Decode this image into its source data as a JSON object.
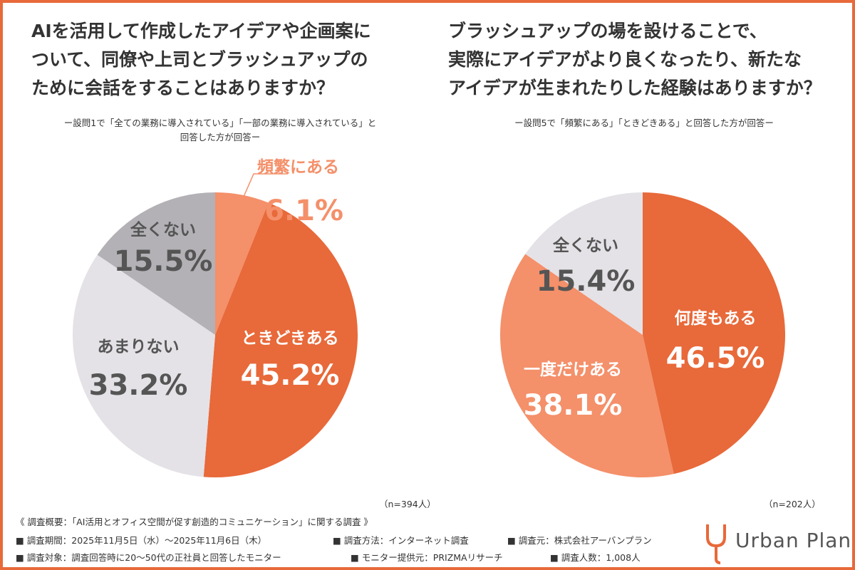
{
  "chart_data": [
    {
      "type": "pie",
      "title": [
        "AIを活用して作成したアイデアや企画案に",
        "ついて、同僚や上司とブラッシュアップの",
        "ために会話をすることはありますか？"
      ],
      "subtitle": [
        "ー設問1で「全ての業務に導入されている」「一部の業務に導入されている」と",
        "回答した方が回答ー"
      ],
      "n_label": "（n=394人）",
      "slices": [
        {
          "label": "頻繁にある",
          "value": 6.1,
          "display": "6.1%",
          "color": "#f4906a"
        },
        {
          "label": "ときどきある",
          "value": 45.2,
          "display": "45.2%",
          "color": "#e8693a"
        },
        {
          "label": "あまりない",
          "value": 33.2,
          "display": "33.2%",
          "color": "#e4e2e6"
        },
        {
          "label": "全くない",
          "value": 15.5,
          "display": "15.5%",
          "color": "#b3b1b5"
        }
      ]
    },
    {
      "type": "pie",
      "title": [
        "ブラッシュアップの場を設けることで、",
        "実際にアイデアがより良くなったり、新たな",
        "アイデアが生まれたりした経験はありますか？"
      ],
      "subtitle": [
        "ー設問5で「頻繁にある」「ときどきある」と回答した方が回答ー"
      ],
      "n_label": "（n=202人）",
      "slices": [
        {
          "label": "何度もある",
          "value": 46.5,
          "display": "46.5%",
          "color": "#e8693a"
        },
        {
          "label": "一度だけある",
          "value": 38.1,
          "display": "38.1%",
          "color": "#f4906a"
        },
        {
          "label": "全くない",
          "value": 15.4,
          "display": "15.4%",
          "color": "#e4e2e6"
        }
      ]
    }
  ],
  "footer": {
    "summary": "《 調査概要：「AI活用とオフィス空間が促す創造的コミュニケーション」に関する調査 》",
    "items_row1": [
      "■ 調査期間：2025年11月5日（水）〜2025年11月6日（木）",
      "■ 調査方法：インターネット調査",
      "■ 調査元：株式会社アーバンプラン"
    ],
    "items_row2": [
      "■ 調査対象：調査回答時に20〜50代の正社員と回答したモニター",
      "■ モニター提供元：PRIZMAリサーチ",
      "■ 調査人数：1,008人"
    ]
  },
  "logo": {
    "text": "Urban Plan",
    "color": "#e8693a"
  }
}
